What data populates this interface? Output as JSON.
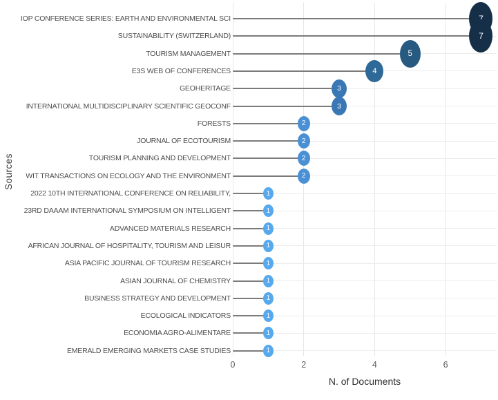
{
  "chart_data": {
    "type": "bar",
    "variant": "lollipop-horizontal",
    "title": "",
    "xlabel": "N. of Documents",
    "ylabel": "Sources",
    "categories": [
      "IOP CONFERENCE SERIES: EARTH AND ENVIRONMENTAL SCI",
      "SUSTAINABILITY (SWITZERLAND)",
      "TOURISM MANAGEMENT",
      "E3S WEB OF CONFERENCES",
      "GEOHERITAGE",
      "INTERNATIONAL MULTIDISCIPLINARY SCIENTIFIC GEOCONF",
      "FORESTS",
      "JOURNAL OF ECOTOURISM",
      "TOURISM PLANNING AND DEVELOPMENT",
      "WIT TRANSACTIONS ON ECOLOGY AND THE ENVIRONMENT",
      "2022 10TH INTERNATIONAL CONFERENCE ON RELIABILITY,",
      "23RD DAAAM INTERNATIONAL SYMPOSIUM ON INTELLIGENT",
      "ADVANCED MATERIALS RESEARCH",
      "AFRICAN JOURNAL OF HOSPITALITY, TOURISM AND LEISUR",
      "ASIA PACIFIC JOURNAL OF TOURISM RESEARCH",
      "ASIAN JOURNAL OF CHEMISTRY",
      "BUSINESS STRATEGY AND DEVELOPMENT",
      "ECOLOGICAL INDICATORS",
      "ECONOMIA AGRO-ALIMENTARE",
      "EMERALD EMERGING MARKETS CASE STUDIES"
    ],
    "values": [
      7,
      7,
      5,
      4,
      3,
      3,
      2,
      2,
      2,
      2,
      1,
      1,
      1,
      1,
      1,
      1,
      1,
      1,
      1,
      1
    ],
    "xlim": [
      0,
      7.4
    ],
    "xticks": [
      0,
      2,
      4,
      6
    ],
    "grid": "vertical lines at major x ticks, light horizontal line per category row",
    "legend": "none",
    "colors_by_value": {
      "1": "#57a9ee",
      "2": "#4a90d5",
      "3": "#3a78b5",
      "4": "#2e6998",
      "5": "#275a80",
      "7": "#162f49"
    },
    "stem_color": "#7b7b7b",
    "background_color": "#ffffff"
  }
}
